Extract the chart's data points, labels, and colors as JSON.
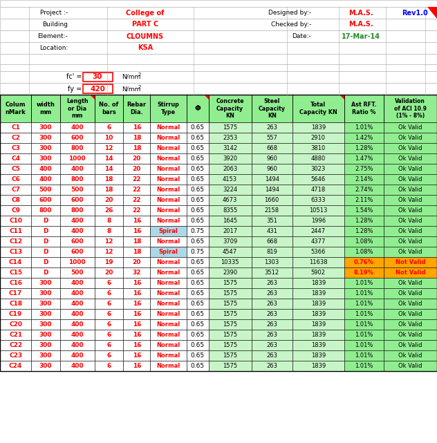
{
  "project": "College of",
  "building": "PART C",
  "element": "CLOUMNS",
  "location": "KSA",
  "designed_by": "M.A.S.",
  "checked_by": "M.A.S.",
  "date": "17-Mar-14",
  "rev": "Rev1.0",
  "fc": 30,
  "fy": 420,
  "columns": [
    [
      "C1",
      300,
      400,
      6,
      16,
      "Normal",
      0.65,
      1575,
      263,
      1839,
      "1.01%",
      "Ok Valid"
    ],
    [
      "C2",
      300,
      600,
      10,
      18,
      "Normal",
      0.65,
      2353,
      557,
      2910,
      "1.42%",
      "Ok Valid"
    ],
    [
      "C3",
      300,
      800,
      12,
      18,
      "Normal",
      0.65,
      3142,
      668,
      3810,
      "1.28%",
      "Ok Valid"
    ],
    [
      "C4",
      300,
      1000,
      14,
      20,
      "Normal",
      0.65,
      3920,
      960,
      4880,
      "1.47%",
      "Ok Valid"
    ],
    [
      "C5",
      400,
      400,
      14,
      20,
      "Normal",
      0.65,
      2063,
      960,
      3023,
      "2.75%",
      "Ok Valid"
    ],
    [
      "C6",
      400,
      800,
      18,
      22,
      "Normal",
      0.65,
      4153,
      1494,
      5646,
      "2.14%",
      "Ok Valid"
    ],
    [
      "C7",
      500,
      500,
      18,
      22,
      "Normal",
      0.65,
      3224,
      1494,
      4718,
      "2.74%",
      "Ok Valid"
    ],
    [
      "C8",
      600,
      600,
      20,
      22,
      "Normal",
      0.65,
      4673,
      1660,
      6333,
      "2.11%",
      "Ok Valid"
    ],
    [
      "C9",
      800,
      800,
      26,
      22,
      "Normal",
      0.65,
      8355,
      2158,
      10513,
      "1.54%",
      "Ok Valid"
    ],
    [
      "C10",
      "D",
      400,
      8,
      16,
      "Normal",
      0.65,
      1645,
      351,
      1996,
      "1.28%",
      "Ok Valid"
    ],
    [
      "C11",
      "D",
      400,
      8,
      16,
      "Spiral",
      0.75,
      2017,
      431,
      2447,
      "1.28%",
      "Ok Valid"
    ],
    [
      "C12",
      "D",
      600,
      12,
      18,
      "Normal",
      0.65,
      3709,
      668,
      4377,
      "1.08%",
      "Ok Valid"
    ],
    [
      "C13",
      "D",
      600,
      12,
      18,
      "Spiral",
      0.75,
      4547,
      819,
      5366,
      "1.08%",
      "Ok Valid"
    ],
    [
      "C14",
      "D",
      1000,
      19,
      20,
      "Normal",
      0.65,
      10335,
      1303,
      11638,
      "0.76%",
      "Not Valid"
    ],
    [
      "C15",
      "D",
      500,
      20,
      32,
      "Normal",
      0.65,
      2390,
      3512,
      5902,
      "8.19%",
      "Not Valid"
    ],
    [
      "C16",
      300,
      400,
      6,
      16,
      "Normal",
      0.65,
      1575,
      263,
      1839,
      "1.01%",
      "Ok Valid"
    ],
    [
      "C17",
      300,
      400,
      6,
      16,
      "Normal",
      0.65,
      1575,
      263,
      1839,
      "1.01%",
      "Ok Valid"
    ],
    [
      "C18",
      300,
      400,
      6,
      16,
      "Normal",
      0.65,
      1575,
      263,
      1839,
      "1.01%",
      "Ok Valid"
    ],
    [
      "C19",
      300,
      400,
      6,
      16,
      "Normal",
      0.65,
      1575,
      263,
      1839,
      "1.01%",
      "Ok Valid"
    ],
    [
      "C20",
      300,
      400,
      6,
      16,
      "Normal",
      0.65,
      1575,
      263,
      1839,
      "1.01%",
      "Ok Valid"
    ],
    [
      "C21",
      300,
      400,
      6,
      16,
      "Normal",
      0.65,
      1575,
      263,
      1839,
      "1.01%",
      "Ok Valid"
    ],
    [
      "C22",
      300,
      400,
      6,
      16,
      "Normal",
      0.65,
      1575,
      263,
      1839,
      "1.01%",
      "Ok Valid"
    ],
    [
      "C23",
      300,
      400,
      6,
      16,
      "Normal",
      0.65,
      1575,
      263,
      1839,
      "1.01%",
      "Ok Valid"
    ],
    [
      "C24",
      300,
      400,
      6,
      16,
      "Normal",
      0.65,
      1575,
      263,
      1839,
      "1.01%",
      "Ok Valid"
    ]
  ],
  "header_bg": "#90EE90",
  "cap_bg": "#C8F5C8",
  "total_bg": "#98E898",
  "spiral_bg": "#ADD8E6",
  "notvalid_bg": "#FFA500",
  "okvalid_bg": "#90EE90",
  "text_red": "#FF0000",
  "text_blue": "#0000FF",
  "text_green": "#228B22",
  "text_black": "#000000",
  "grid_light": "#AAAAAA",
  "grid_dark": "#000000"
}
